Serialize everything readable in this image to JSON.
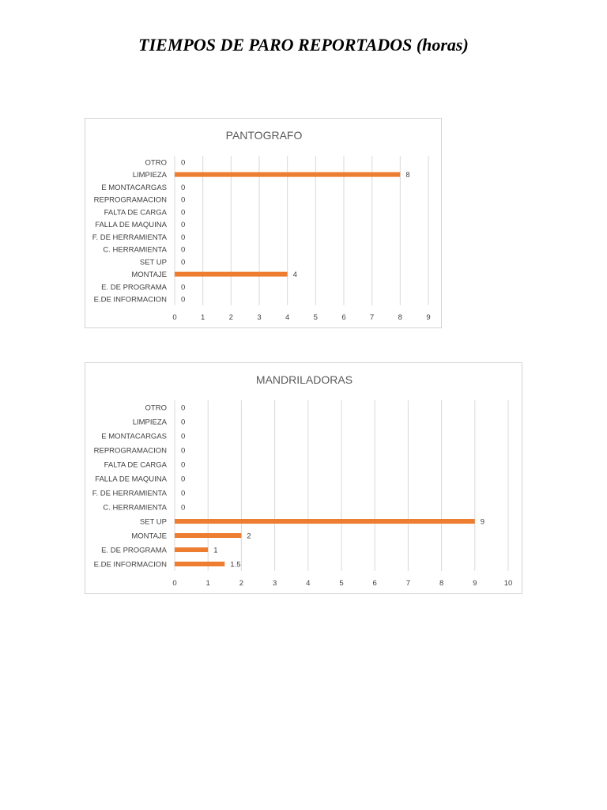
{
  "page_title": "TIEMPOS DE PARO REPORTADOS (horas)",
  "colors": {
    "bar": "#ed7d31",
    "grid": "#d9d9d9",
    "text": "#404040",
    "title": "#595959"
  },
  "chart_data": [
    {
      "type": "bar",
      "orientation": "horizontal",
      "title": "PANTOGRAFO",
      "categories": [
        "OTRO",
        "LIMPIEZA",
        "E MONTACARGAS",
        "REPROGRAMACION",
        "FALTA DE CARGA",
        "FALLA DE MAQUINA",
        "F. DE HERRAMIENTA",
        "C. HERRAMIENTA",
        "SET UP",
        "MONTAJE",
        "E. DE PROGRAMA",
        "E.DE INFORMACION"
      ],
      "values": [
        0,
        8,
        0,
        0,
        0,
        0,
        0,
        0,
        null,
        4,
        0,
        0
      ],
      "data_labels": [
        "0",
        "8",
        "0",
        "0",
        "0",
        "0",
        "0",
        "0",
        "0",
        "4",
        "0",
        "0"
      ],
      "xlim": [
        0,
        9
      ],
      "xticks": [
        0,
        1,
        2,
        3,
        4,
        5,
        6,
        7,
        8,
        9
      ],
      "grid": true,
      "legend": "none"
    },
    {
      "type": "bar",
      "orientation": "horizontal",
      "title": "MANDRILADORAS",
      "categories": [
        "OTRO",
        "LIMPIEZA",
        "E MONTACARGAS",
        "REPROGRAMACION",
        "FALTA DE CARGA",
        "FALLA DE MAQUINA",
        "F. DE HERRAMIENTA",
        "C. HERRAMIENTA",
        "SET UP",
        "MONTAJE",
        "E. DE PROGRAMA",
        "E.DE INFORMACION"
      ],
      "values": [
        0,
        0,
        0,
        0,
        0,
        0,
        0,
        0,
        9,
        2,
        1,
        1.5
      ],
      "data_labels": [
        "0",
        "0",
        "0",
        "0",
        "0",
        "0",
        "0",
        "0",
        "9",
        "2",
        "1",
        "1.5"
      ],
      "xlim": [
        0,
        10
      ],
      "xticks": [
        0,
        1,
        2,
        3,
        4,
        5,
        6,
        7,
        8,
        9,
        10
      ],
      "grid": true,
      "legend": "none"
    }
  ]
}
